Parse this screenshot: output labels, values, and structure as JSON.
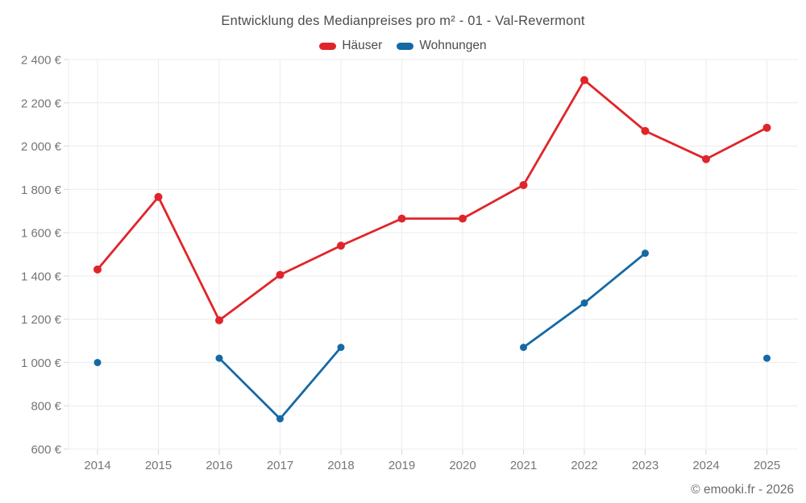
{
  "footer": {
    "credit": "© emooki.fr - 2026"
  },
  "chart_data": {
    "type": "line",
    "title": "Entwicklung des Medianpreises pro m² - 01 - Val-Revermont",
    "categories": [
      "2014",
      "2015",
      "2016",
      "2017",
      "2018",
      "2019",
      "2020",
      "2021",
      "2022",
      "2023",
      "2024",
      "2025"
    ],
    "series": [
      {
        "name": "Häuser",
        "color": "#e0252a",
        "values": [
          1430,
          1765,
          1195,
          1405,
          1540,
          1665,
          1665,
          1820,
          2305,
          2070,
          1940,
          2085
        ]
      },
      {
        "name": "Wohnungen",
        "color": "#1569a4",
        "values": [
          1000,
          null,
          1020,
          740,
          1070,
          null,
          null,
          1070,
          1275,
          1505,
          null,
          1020
        ]
      }
    ],
    "ylim": [
      600,
      2400
    ],
    "ytick_step": 200,
    "ytick_labels": [
      "600 €",
      "800 €",
      "1 000 €",
      "1 200 €",
      "1 400 €",
      "1 600 €",
      "1 800 €",
      "2 000 €",
      "2 200 €",
      "2 400 €"
    ],
    "currency_suffix": "€",
    "grid": true,
    "legend_position": "top",
    "missing_years_wohnungen": [
      "2015",
      "2019",
      "2020",
      "2024"
    ]
  }
}
